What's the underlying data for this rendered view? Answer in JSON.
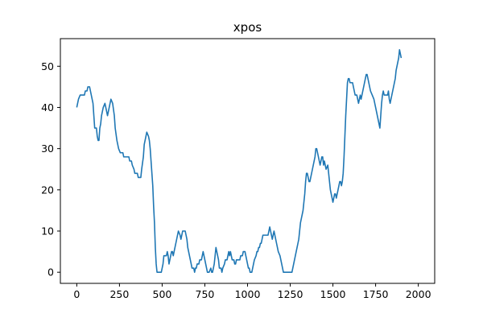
{
  "chart_data": {
    "type": "line",
    "title": "xpos",
    "xlabel": "",
    "ylabel": "",
    "xlim": [
      -96,
      2096
    ],
    "ylim": [
      -2.7,
      56.7
    ],
    "x_ticks": [
      0,
      250,
      500,
      750,
      1000,
      1250,
      1500,
      1750,
      2000
    ],
    "y_ticks": [
      0,
      10,
      20,
      30,
      40,
      50
    ],
    "grid": false,
    "series": [
      {
        "name": "xpos",
        "color": "#1f77b4",
        "points": [
          [
            0,
            40
          ],
          [
            10,
            42
          ],
          [
            20,
            43
          ],
          [
            45,
            43
          ],
          [
            50,
            44
          ],
          [
            60,
            44
          ],
          [
            65,
            45
          ],
          [
            75,
            45
          ],
          [
            80,
            44
          ],
          [
            85,
            43
          ],
          [
            95,
            41
          ],
          [
            100,
            38
          ],
          [
            105,
            35
          ],
          [
            115,
            35
          ],
          [
            120,
            33
          ],
          [
            125,
            32
          ],
          [
            130,
            32
          ],
          [
            135,
            35
          ],
          [
            140,
            36
          ],
          [
            145,
            38
          ],
          [
            155,
            40
          ],
          [
            165,
            41
          ],
          [
            170,
            40
          ],
          [
            180,
            38
          ],
          [
            190,
            40
          ],
          [
            200,
            42
          ],
          [
            210,
            41
          ],
          [
            220,
            38
          ],
          [
            225,
            35
          ],
          [
            235,
            32
          ],
          [
            245,
            30
          ],
          [
            255,
            29
          ],
          [
            270,
            29
          ],
          [
            275,
            28
          ],
          [
            305,
            28
          ],
          [
            310,
            27
          ],
          [
            320,
            27
          ],
          [
            325,
            26
          ],
          [
            335,
            25
          ],
          [
            340,
            24
          ],
          [
            355,
            24
          ],
          [
            360,
            23
          ],
          [
            375,
            23
          ],
          [
            380,
            25
          ],
          [
            390,
            28
          ],
          [
            395,
            31
          ],
          [
            400,
            32
          ],
          [
            405,
            33
          ],
          [
            410,
            34
          ],
          [
            420,
            33
          ],
          [
            425,
            32
          ],
          [
            430,
            30
          ],
          [
            435,
            27
          ],
          [
            440,
            24
          ],
          [
            445,
            21
          ],
          [
            450,
            16
          ],
          [
            455,
            12
          ],
          [
            460,
            6
          ],
          [
            465,
            2
          ],
          [
            470,
            0
          ],
          [
            480,
            0
          ],
          [
            485,
            0
          ],
          [
            495,
            0
          ],
          [
            500,
            1
          ],
          [
            505,
            2
          ],
          [
            510,
            4
          ],
          [
            525,
            4
          ],
          [
            530,
            5
          ],
          [
            535,
            4
          ],
          [
            540,
            2
          ],
          [
            545,
            3
          ],
          [
            550,
            4
          ],
          [
            555,
            5
          ],
          [
            560,
            5
          ],
          [
            565,
            4
          ],
          [
            570,
            5
          ],
          [
            575,
            6
          ],
          [
            580,
            7
          ],
          [
            585,
            8
          ],
          [
            590,
            9
          ],
          [
            595,
            10
          ],
          [
            605,
            9
          ],
          [
            610,
            8
          ],
          [
            615,
            9
          ],
          [
            620,
            10
          ],
          [
            635,
            10
          ],
          [
            640,
            9
          ],
          [
            645,
            8
          ],
          [
            650,
            6
          ],
          [
            655,
            5
          ],
          [
            665,
            3
          ],
          [
            670,
            2
          ],
          [
            675,
            1
          ],
          [
            685,
            1
          ],
          [
            690,
            0
          ],
          [
            695,
            1
          ],
          [
            700,
            1
          ],
          [
            705,
            2
          ],
          [
            715,
            2
          ],
          [
            720,
            3
          ],
          [
            730,
            3
          ],
          [
            735,
            4
          ],
          [
            740,
            5
          ],
          [
            745,
            4
          ],
          [
            750,
            3
          ],
          [
            755,
            2
          ],
          [
            760,
            1
          ],
          [
            765,
            0
          ],
          [
            775,
            0
          ],
          [
            785,
            1
          ],
          [
            790,
            0
          ],
          [
            795,
            0
          ],
          [
            800,
            1
          ],
          [
            805,
            2
          ],
          [
            810,
            4
          ],
          [
            815,
            6
          ],
          [
            820,
            5
          ],
          [
            825,
            4
          ],
          [
            830,
            3
          ],
          [
            835,
            1
          ],
          [
            845,
            1
          ],
          [
            850,
            0
          ],
          [
            855,
            1
          ],
          [
            865,
            2
          ],
          [
            870,
            3
          ],
          [
            880,
            3
          ],
          [
            885,
            4
          ],
          [
            890,
            5
          ],
          [
            895,
            4
          ],
          [
            900,
            5
          ],
          [
            905,
            4
          ],
          [
            910,
            3
          ],
          [
            920,
            3
          ],
          [
            925,
            2
          ],
          [
            930,
            2
          ],
          [
            935,
            3
          ],
          [
            955,
            3
          ],
          [
            960,
            4
          ],
          [
            970,
            4
          ],
          [
            975,
            5
          ],
          [
            985,
            5
          ],
          [
            990,
            4
          ],
          [
            995,
            3
          ],
          [
            1000,
            2
          ],
          [
            1005,
            1
          ],
          [
            1010,
            1
          ],
          [
            1015,
            0
          ],
          [
            1025,
            0
          ],
          [
            1030,
            1
          ],
          [
            1035,
            2
          ],
          [
            1040,
            3
          ],
          [
            1050,
            4
          ],
          [
            1055,
            5
          ],
          [
            1060,
            5
          ],
          [
            1065,
            6
          ],
          [
            1070,
            6
          ],
          [
            1075,
            7
          ],
          [
            1080,
            7
          ],
          [
            1085,
            8
          ],
          [
            1090,
            9
          ],
          [
            1100,
            9
          ],
          [
            1105,
            9
          ],
          [
            1120,
            9
          ],
          [
            1125,
            10
          ],
          [
            1130,
            11
          ],
          [
            1135,
            10
          ],
          [
            1140,
            9
          ],
          [
            1145,
            8
          ],
          [
            1150,
            9
          ],
          [
            1155,
            10
          ],
          [
            1160,
            9
          ],
          [
            1165,
            8
          ],
          [
            1170,
            7
          ],
          [
            1175,
            6
          ],
          [
            1180,
            5
          ],
          [
            1190,
            4
          ],
          [
            1195,
            3
          ],
          [
            1200,
            2
          ],
          [
            1205,
            1
          ],
          [
            1210,
            0
          ],
          [
            1220,
            0
          ],
          [
            1250,
            0
          ],
          [
            1260,
            0
          ],
          [
            1265,
            1
          ],
          [
            1270,
            2
          ],
          [
            1275,
            3
          ],
          [
            1280,
            4
          ],
          [
            1285,
            5
          ],
          [
            1290,
            6
          ],
          [
            1295,
            7
          ],
          [
            1300,
            8
          ],
          [
            1305,
            10
          ],
          [
            1310,
            12
          ],
          [
            1315,
            13
          ],
          [
            1320,
            14
          ],
          [
            1325,
            15
          ],
          [
            1330,
            17
          ],
          [
            1335,
            19
          ],
          [
            1340,
            22
          ],
          [
            1345,
            24
          ],
          [
            1350,
            24
          ],
          [
            1355,
            23
          ],
          [
            1360,
            22
          ],
          [
            1365,
            22
          ],
          [
            1370,
            23
          ],
          [
            1375,
            24
          ],
          [
            1380,
            25
          ],
          [
            1385,
            26
          ],
          [
            1390,
            27
          ],
          [
            1395,
            28
          ],
          [
            1400,
            30
          ],
          [
            1405,
            30
          ],
          [
            1410,
            29
          ],
          [
            1415,
            28
          ],
          [
            1420,
            27
          ],
          [
            1425,
            26
          ],
          [
            1430,
            27
          ],
          [
            1435,
            28
          ],
          [
            1440,
            28
          ],
          [
            1445,
            26
          ],
          [
            1450,
            27
          ],
          [
            1455,
            26
          ],
          [
            1460,
            25
          ],
          [
            1470,
            26
          ],
          [
            1475,
            24
          ],
          [
            1480,
            22
          ],
          [
            1485,
            20
          ],
          [
            1490,
            19
          ],
          [
            1495,
            18
          ],
          [
            1500,
            17
          ],
          [
            1505,
            18
          ],
          [
            1510,
            19
          ],
          [
            1515,
            19
          ],
          [
            1520,
            18
          ],
          [
            1525,
            19
          ],
          [
            1530,
            20
          ],
          [
            1535,
            21
          ],
          [
            1540,
            22
          ],
          [
            1545,
            22
          ],
          [
            1550,
            21
          ],
          [
            1555,
            22
          ],
          [
            1560,
            24
          ],
          [
            1565,
            28
          ],
          [
            1570,
            33
          ],
          [
            1575,
            38
          ],
          [
            1580,
            42
          ],
          [
            1585,
            46
          ],
          [
            1590,
            47
          ],
          [
            1595,
            47
          ],
          [
            1600,
            46
          ],
          [
            1605,
            46
          ],
          [
            1615,
            46
          ],
          [
            1620,
            45
          ],
          [
            1625,
            44
          ],
          [
            1630,
            43
          ],
          [
            1640,
            43
          ],
          [
            1645,
            42
          ],
          [
            1650,
            41
          ],
          [
            1655,
            42
          ],
          [
            1660,
            43
          ],
          [
            1665,
            42
          ],
          [
            1670,
            43
          ],
          [
            1675,
            44
          ],
          [
            1680,
            45
          ],
          [
            1685,
            46
          ],
          [
            1690,
            47
          ],
          [
            1695,
            48
          ],
          [
            1700,
            48
          ],
          [
            1705,
            47
          ],
          [
            1710,
            46
          ],
          [
            1715,
            45
          ],
          [
            1720,
            44
          ],
          [
            1730,
            43
          ],
          [
            1740,
            42
          ],
          [
            1745,
            41
          ],
          [
            1750,
            40
          ],
          [
            1755,
            39
          ],
          [
            1760,
            38
          ],
          [
            1765,
            37
          ],
          [
            1770,
            36
          ],
          [
            1775,
            35
          ],
          [
            1780,
            38
          ],
          [
            1785,
            41
          ],
          [
            1790,
            43
          ],
          [
            1795,
            44
          ],
          [
            1800,
            43
          ],
          [
            1805,
            43
          ],
          [
            1820,
            43
          ],
          [
            1825,
            44
          ],
          [
            1830,
            42
          ],
          [
            1835,
            41
          ],
          [
            1840,
            42
          ],
          [
            1845,
            43
          ],
          [
            1850,
            44
          ],
          [
            1855,
            45
          ],
          [
            1860,
            46
          ],
          [
            1865,
            47
          ],
          [
            1870,
            49
          ],
          [
            1875,
            50
          ],
          [
            1880,
            51
          ],
          [
            1885,
            52
          ],
          [
            1890,
            54
          ],
          [
            1895,
            53
          ],
          [
            1900,
            52
          ]
        ]
      }
    ]
  }
}
